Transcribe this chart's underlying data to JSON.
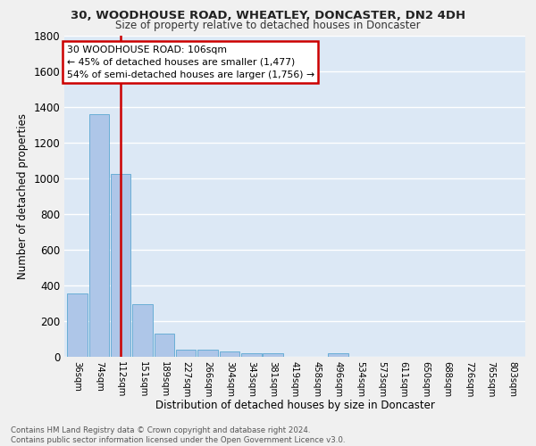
{
  "title1": "30, WOODHOUSE ROAD, WHEATLEY, DONCASTER, DN2 4DH",
  "title2": "Size of property relative to detached houses in Doncaster",
  "xlabel": "Distribution of detached houses by size in Doncaster",
  "ylabel": "Number of detached properties",
  "bar_labels": [
    "36sqm",
    "74sqm",
    "112sqm",
    "151sqm",
    "189sqm",
    "227sqm",
    "266sqm",
    "304sqm",
    "343sqm",
    "381sqm",
    "419sqm",
    "458sqm",
    "496sqm",
    "534sqm",
    "573sqm",
    "611sqm",
    "650sqm",
    "688sqm",
    "726sqm",
    "765sqm",
    "803sqm"
  ],
  "bar_values": [
    355,
    1360,
    1025,
    295,
    130,
    40,
    38,
    30,
    22,
    18,
    0,
    0,
    20,
    0,
    0,
    0,
    0,
    0,
    0,
    0,
    0
  ],
  "bar_color": "#aec6e8",
  "bar_edge_color": "#6aaed6",
  "background_color": "#dce8f5",
  "grid_color": "#ffffff",
  "vline_color": "#cc0000",
  "annotation_text": "30 WOODHOUSE ROAD: 106sqm\n← 45% of detached houses are smaller (1,477)\n54% of semi-detached houses are larger (1,756) →",
  "annotation_box_color": "#ffffff",
  "annotation_box_edge": "#cc0000",
  "footer_text": "Contains HM Land Registry data © Crown copyright and database right 2024.\nContains public sector information licensed under the Open Government Licence v3.0.",
  "ylim": [
    0,
    1800
  ],
  "fig_bg": "#f0f0f0"
}
